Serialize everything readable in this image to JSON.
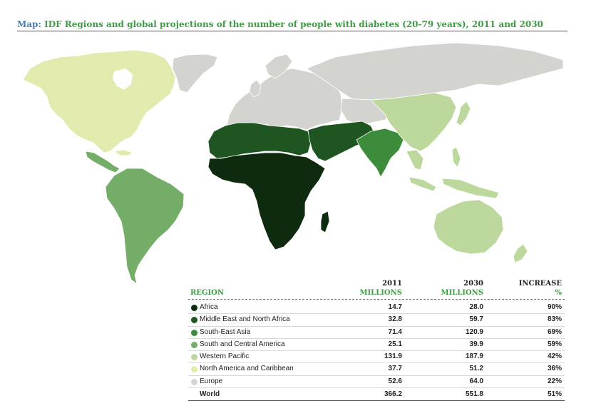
{
  "title": {
    "lead": "Map:",
    "text": "IDF Regions and global projections of the number of people with diabetes (20-79 years), 2011 and 2030"
  },
  "colors": {
    "africa": "#0f2b0f",
    "mena": "#1e5520",
    "sea": "#3c8c3c",
    "sca": "#74ad68",
    "wp": "#bcd89c",
    "nac": "#e2ebad",
    "europe": "#d3d3d0",
    "accent": "#3e9c44"
  },
  "table": {
    "headers": {
      "region": "REGION",
      "y2011_top": "2011",
      "y2011_bot": "MILLIONS",
      "y2030_top": "2030",
      "y2030_bot": "MILLIONS",
      "inc_top": "INCREASE",
      "inc_bot": "%"
    },
    "rows": [
      {
        "region": "Africa",
        "v2011": "14.7",
        "v2030": "28.0",
        "increase": "90%",
        "color": "#0f2b0f"
      },
      {
        "region": "Middle East and North Africa",
        "v2011": "32.8",
        "v2030": "59.7",
        "increase": "83%",
        "color": "#1e5520"
      },
      {
        "region": "South-East Asia",
        "v2011": "71.4",
        "v2030": "120.9",
        "increase": "69%",
        "color": "#3c8c3c"
      },
      {
        "region": "South and Central America",
        "v2011": "25.1",
        "v2030": "39.9",
        "increase": "59%",
        "color": "#74ad68"
      },
      {
        "region": "Western Pacific",
        "v2011": "131.9",
        "v2030": "187.9",
        "increase": "42%",
        "color": "#bcd89c"
      },
      {
        "region": "North America and Caribbean",
        "v2011": "37.7",
        "v2030": "51.2",
        "increase": "36%",
        "color": "#e2ebad"
      },
      {
        "region": "Europe",
        "v2011": "52.6",
        "v2030": "64.0",
        "increase": "22%",
        "color": "#d3d3d0"
      }
    ],
    "world": {
      "region": "World",
      "v2011": "366.2",
      "v2030": "551.8",
      "increase": "51%"
    }
  }
}
